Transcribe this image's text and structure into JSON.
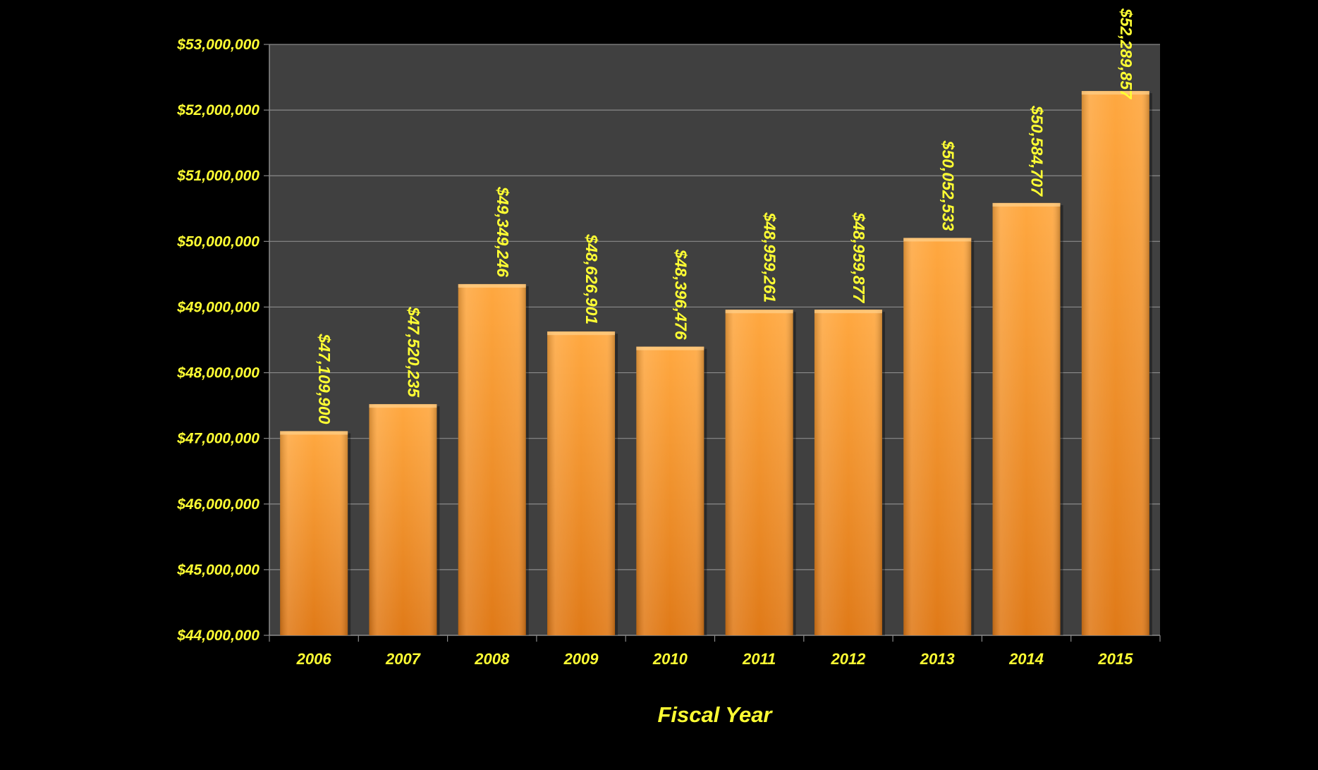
{
  "colors": {
    "background": "#000000",
    "plot_area": "#404040",
    "gridline": "#8a8a8a",
    "bar_light": "#ffa840",
    "bar_dark": "#e07a18",
    "label_text": "#ffff33"
  },
  "chart_data": {
    "type": "bar",
    "title": "",
    "xlabel": "Fiscal Year",
    "ylabel": "",
    "categories": [
      "2006",
      "2007",
      "2008",
      "2009",
      "2010",
      "2011",
      "2012",
      "2013",
      "2014",
      "2015"
    ],
    "values": [
      47109900,
      47520235,
      49349246,
      48626901,
      48396476,
      48959261,
      48959877,
      50052533,
      50584707,
      52289857
    ],
    "value_labels": [
      "$47,109,900",
      "$47,520,235",
      "$49,349,246",
      "$48,626,901",
      "$48,396,476",
      "$48,959,261",
      "$48,959,877",
      "$50,052,533",
      "$50,584,707",
      "$52,289,857"
    ],
    "ylim": [
      44000000,
      53000000
    ],
    "y_ticks": [
      44000000,
      45000000,
      46000000,
      47000000,
      48000000,
      49000000,
      50000000,
      51000000,
      52000000,
      53000000
    ],
    "y_tick_labels": [
      "$44,000,000",
      "$45,000,000",
      "$46,000,000",
      "$47,000,000",
      "$48,000,000",
      "$49,000,000",
      "$50,000,000",
      "$51,000,000",
      "$52,000,000",
      "$53,000,000"
    ],
    "grid": true,
    "legend": "none"
  }
}
